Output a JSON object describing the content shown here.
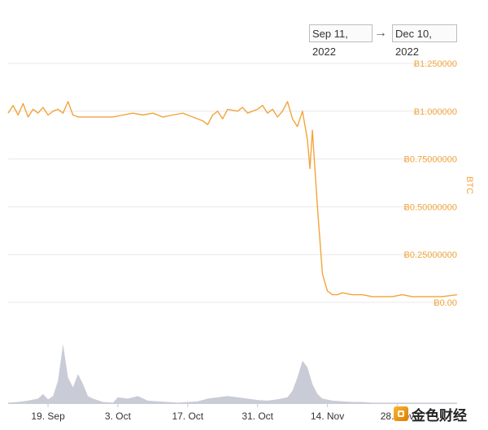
{
  "date_range": {
    "start": "Sep 11, 2022",
    "arrow": "→",
    "end": "Dec 10, 2022"
  },
  "colors": {
    "price_line": "#f2a43a",
    "volume_fill": "#c9ccd6",
    "grid": "#e8e8e8",
    "label": "#f2a43a"
  },
  "watermark": {
    "text": "金色财经"
  },
  "chart_data": {
    "type": "line",
    "ylabel": "BTC",
    "ylim": [
      0,
      1.25
    ],
    "y_ticks": [
      {
        "value": 1.25,
        "label": "Ƀ1.250000"
      },
      {
        "value": 1.0,
        "label": "Ƀ1.000000"
      },
      {
        "value": 0.75,
        "label": "Ƀ0.75000000"
      },
      {
        "value": 0.5,
        "label": "Ƀ0.50000000"
      },
      {
        "value": 0.25,
        "label": "Ƀ0.25000000"
      },
      {
        "value": 0.0,
        "label": "Ƀ0.00"
      }
    ],
    "x_ticks": [
      {
        "date": "2022-09-19",
        "label": "19. Sep"
      },
      {
        "date": "2022-10-03",
        "label": "3. Oct"
      },
      {
        "date": "2022-10-17",
        "label": "17. Oct"
      },
      {
        "date": "2022-10-31",
        "label": "31. Oct"
      },
      {
        "date": "2022-11-14",
        "label": "14. Nov"
      },
      {
        "date": "2022-11-28",
        "label": "28. Nov"
      }
    ],
    "xlim": [
      "2022-09-11",
      "2022-12-10"
    ],
    "series": [
      {
        "values": [
          [
            "2022-09-11",
            0.99
          ],
          [
            "2022-09-12",
            1.03
          ],
          [
            "2022-09-13",
            0.98
          ],
          [
            "2022-09-14",
            1.04
          ],
          [
            "2022-09-15",
            0.97
          ],
          [
            "2022-09-16",
            1.01
          ],
          [
            "2022-09-17",
            0.99
          ],
          [
            "2022-09-18",
            1.02
          ],
          [
            "2022-09-19",
            0.98
          ],
          [
            "2022-09-20",
            1.0
          ],
          [
            "2022-09-21",
            1.01
          ],
          [
            "2022-09-22",
            0.99
          ],
          [
            "2022-09-23",
            1.05
          ],
          [
            "2022-09-24",
            0.98
          ],
          [
            "2022-09-25",
            0.97
          ],
          [
            "2022-09-26",
            0.97
          ],
          [
            "2022-09-28",
            0.97
          ],
          [
            "2022-09-30",
            0.97
          ],
          [
            "2022-10-02",
            0.97
          ],
          [
            "2022-10-04",
            0.98
          ],
          [
            "2022-10-06",
            0.99
          ],
          [
            "2022-10-08",
            0.98
          ],
          [
            "2022-10-10",
            0.99
          ],
          [
            "2022-10-12",
            0.97
          ],
          [
            "2022-10-14",
            0.98
          ],
          [
            "2022-10-16",
            0.99
          ],
          [
            "2022-10-18",
            0.97
          ],
          [
            "2022-10-20",
            0.95
          ],
          [
            "2022-10-21",
            0.93
          ],
          [
            "2022-10-22",
            0.98
          ],
          [
            "2022-10-23",
            1.0
          ],
          [
            "2022-10-24",
            0.96
          ],
          [
            "2022-10-25",
            1.01
          ],
          [
            "2022-10-27",
            1.0
          ],
          [
            "2022-10-28",
            1.02
          ],
          [
            "2022-10-29",
            0.99
          ],
          [
            "2022-10-31",
            1.01
          ],
          [
            "2022-11-01",
            1.03
          ],
          [
            "2022-11-02",
            0.99
          ],
          [
            "2022-11-03",
            1.01
          ],
          [
            "2022-11-04",
            0.97
          ],
          [
            "2022-11-05",
            1.0
          ],
          [
            "2022-11-06",
            1.05
          ],
          [
            "2022-11-07",
            0.96
          ],
          [
            "2022-11-08",
            0.92
          ],
          [
            "2022-11-09",
            1.0
          ],
          [
            "2022-11-10",
            0.85
          ],
          [
            "2022-11-10T12:00",
            0.7
          ],
          [
            "2022-11-11",
            0.9
          ],
          [
            "2022-11-12",
            0.5
          ],
          [
            "2022-11-13",
            0.15
          ],
          [
            "2022-11-14",
            0.06
          ],
          [
            "2022-11-15",
            0.04
          ],
          [
            "2022-11-16",
            0.04
          ],
          [
            "2022-11-17",
            0.05
          ],
          [
            "2022-11-19",
            0.04
          ],
          [
            "2022-11-21",
            0.04
          ],
          [
            "2022-11-23",
            0.03
          ],
          [
            "2022-11-25",
            0.03
          ],
          [
            "2022-11-27",
            0.03
          ],
          [
            "2022-11-29",
            0.04
          ],
          [
            "2022-12-01",
            0.03
          ],
          [
            "2022-12-03",
            0.03
          ],
          [
            "2022-12-05",
            0.03
          ],
          [
            "2022-12-07",
            0.03
          ],
          [
            "2022-12-10",
            0.04
          ]
        ]
      }
    ],
    "volume": [
      [
        "2022-09-11",
        0.02
      ],
      [
        "2022-09-13",
        0.03
      ],
      [
        "2022-09-15",
        0.05
      ],
      [
        "2022-09-17",
        0.08
      ],
      [
        "2022-09-18",
        0.15
      ],
      [
        "2022-09-19",
        0.07
      ],
      [
        "2022-09-20",
        0.12
      ],
      [
        "2022-09-21",
        0.35
      ],
      [
        "2022-09-22",
        0.9
      ],
      [
        "2022-09-23",
        0.4
      ],
      [
        "2022-09-24",
        0.25
      ],
      [
        "2022-09-25",
        0.45
      ],
      [
        "2022-09-26",
        0.3
      ],
      [
        "2022-09-27",
        0.12
      ],
      [
        "2022-09-28",
        0.08
      ],
      [
        "2022-09-30",
        0.03
      ],
      [
        "2022-10-02",
        0.02
      ],
      [
        "2022-10-03",
        0.1
      ],
      [
        "2022-10-05",
        0.08
      ],
      [
        "2022-10-07",
        0.12
      ],
      [
        "2022-10-09",
        0.05
      ],
      [
        "2022-10-11",
        0.04
      ],
      [
        "2022-10-13",
        0.03
      ],
      [
        "2022-10-15",
        0.02
      ],
      [
        "2022-10-17",
        0.03
      ],
      [
        "2022-10-19",
        0.04
      ],
      [
        "2022-10-21",
        0.08
      ],
      [
        "2022-10-23",
        0.1
      ],
      [
        "2022-10-25",
        0.12
      ],
      [
        "2022-10-27",
        0.1
      ],
      [
        "2022-10-29",
        0.08
      ],
      [
        "2022-10-31",
        0.06
      ],
      [
        "2022-11-02",
        0.05
      ],
      [
        "2022-11-04",
        0.07
      ],
      [
        "2022-11-06",
        0.1
      ],
      [
        "2022-11-07",
        0.2
      ],
      [
        "2022-11-08",
        0.4
      ],
      [
        "2022-11-09",
        0.65
      ],
      [
        "2022-11-10",
        0.55
      ],
      [
        "2022-11-11",
        0.3
      ],
      [
        "2022-11-12",
        0.15
      ],
      [
        "2022-11-13",
        0.08
      ],
      [
        "2022-11-15",
        0.05
      ],
      [
        "2022-11-17",
        0.04
      ],
      [
        "2022-11-19",
        0.03
      ],
      [
        "2022-11-21",
        0.03
      ],
      [
        "2022-11-23",
        0.02
      ],
      [
        "2022-11-25",
        0.02
      ],
      [
        "2022-11-27",
        0.02
      ],
      [
        "2022-11-29",
        0.02
      ],
      [
        "2022-12-01",
        0.02
      ],
      [
        "2022-12-04",
        0.02
      ],
      [
        "2022-12-07",
        0.02
      ],
      [
        "2022-12-10",
        0.02
      ]
    ]
  }
}
